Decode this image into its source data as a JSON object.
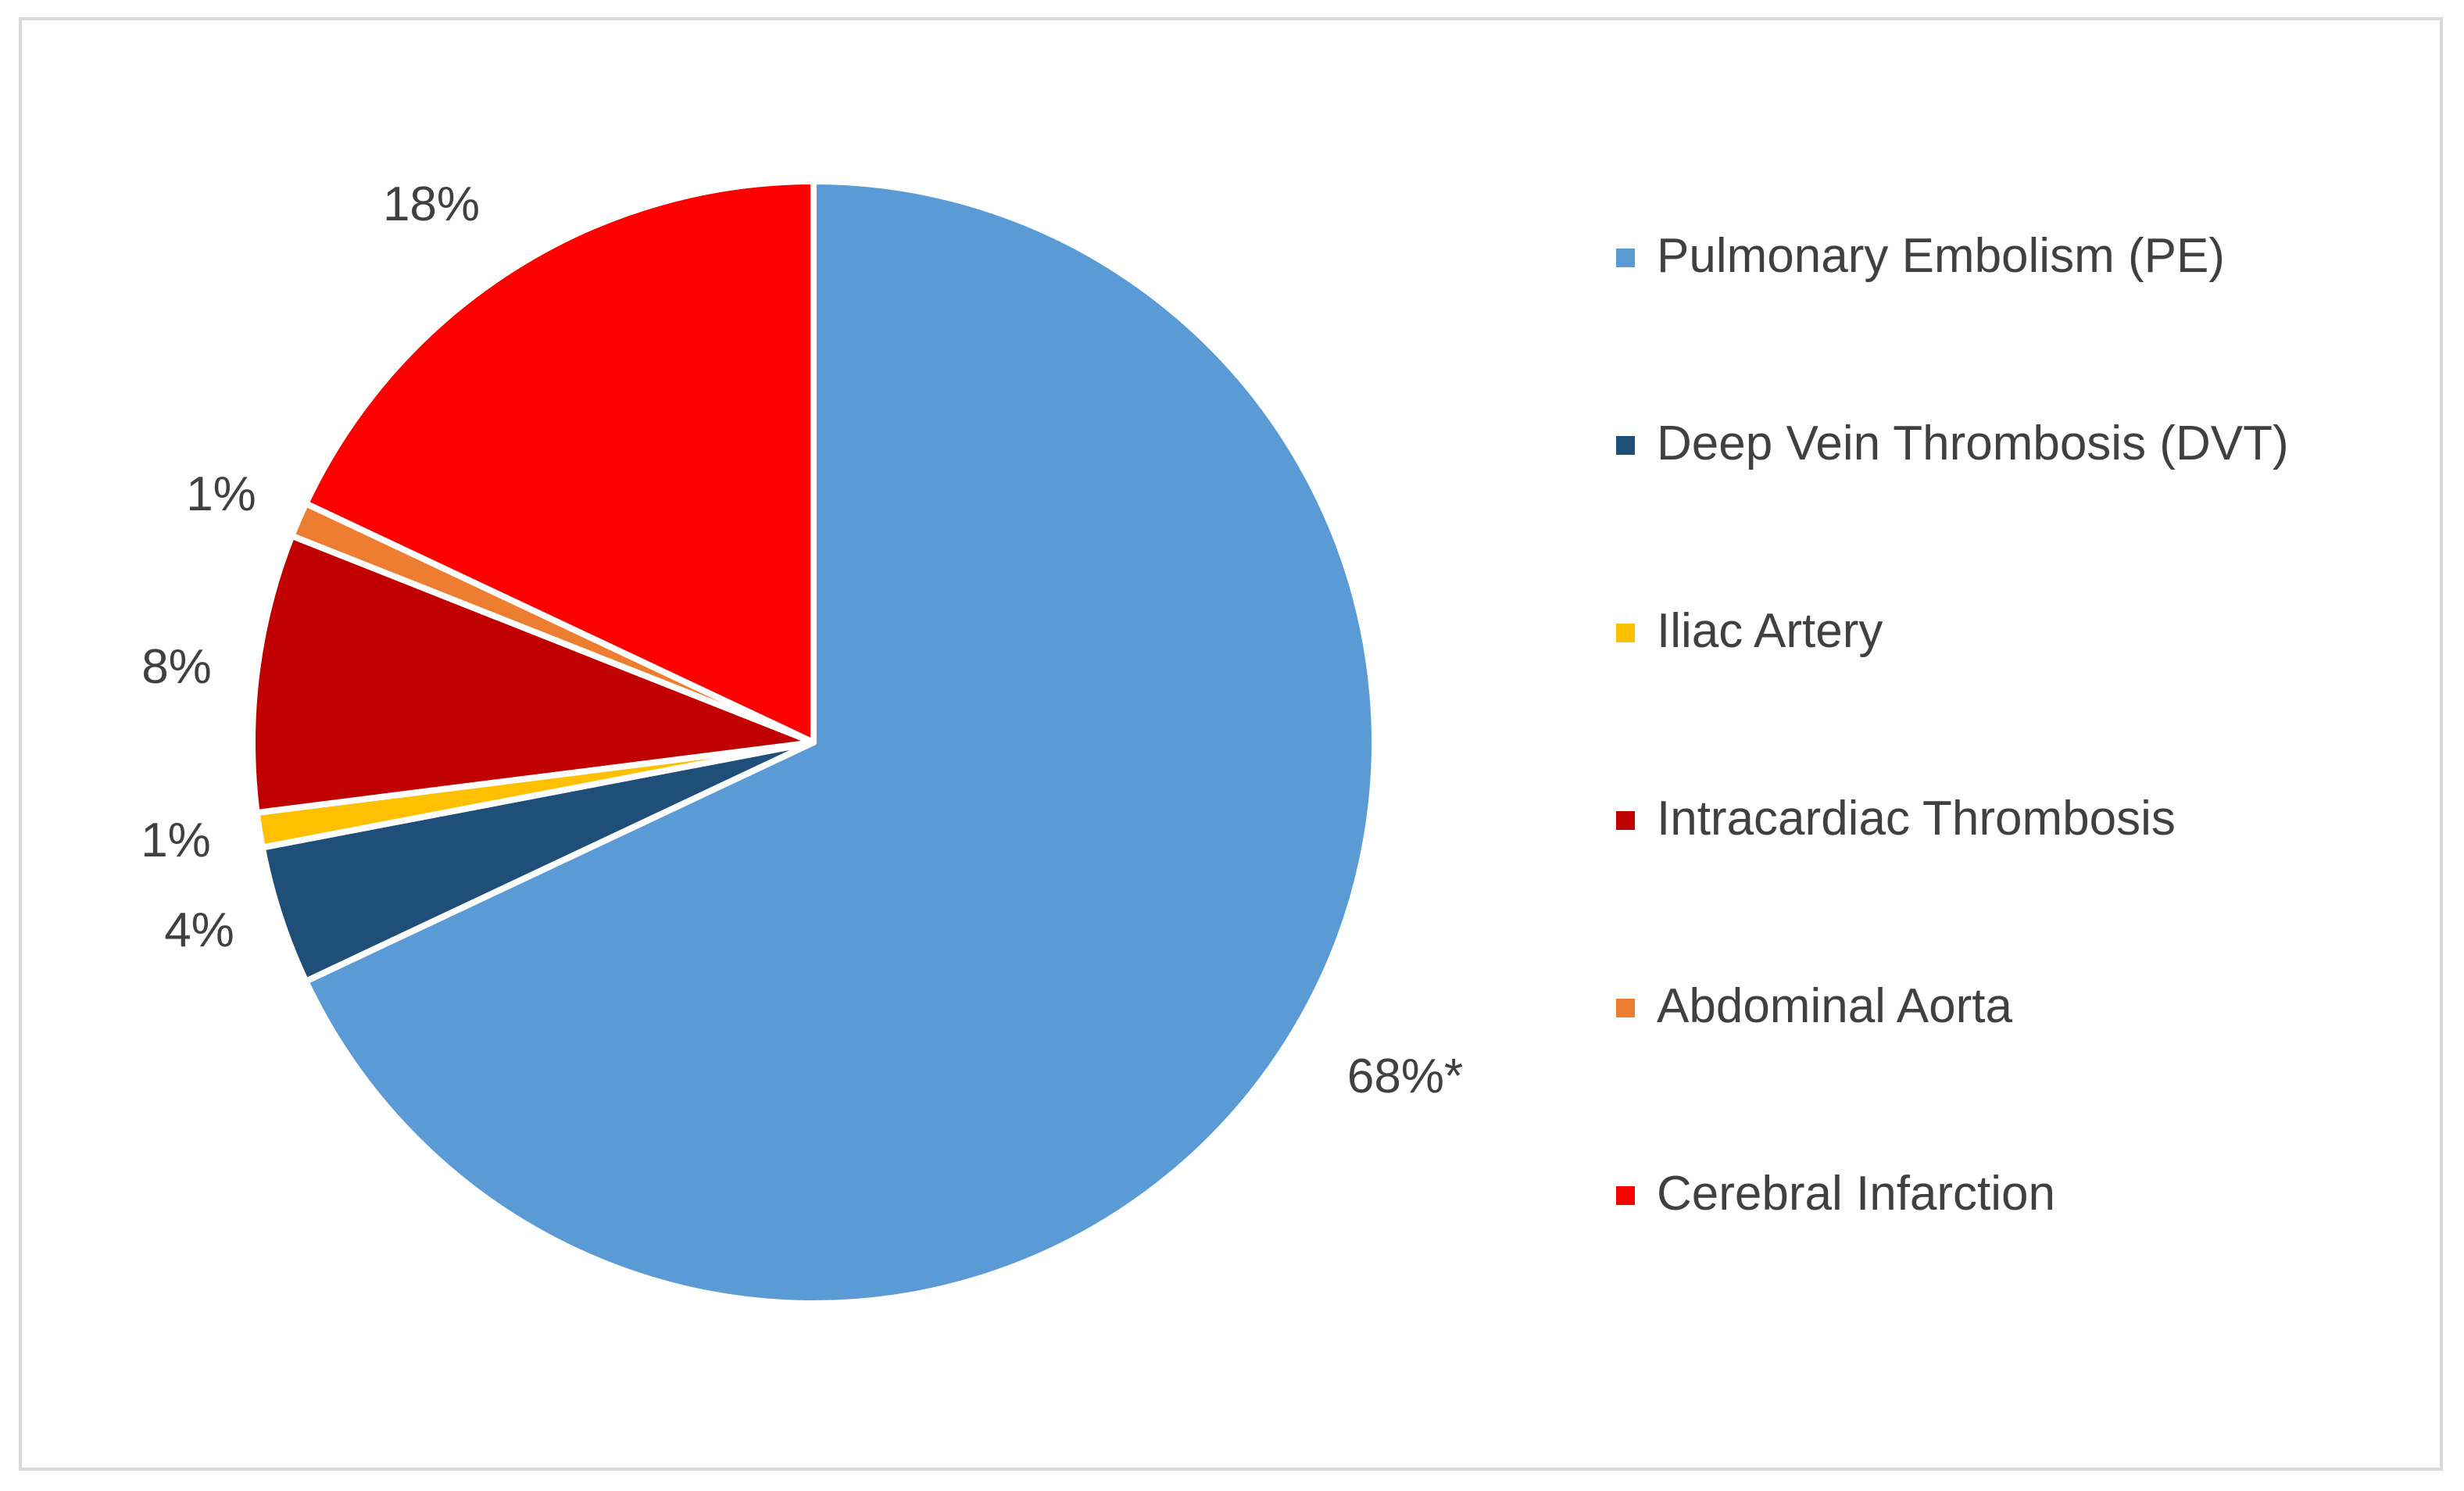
{
  "chart_data": {
    "type": "pie",
    "categories": [
      "Pulmonary Embolism (PE)",
      "Deep Vein Thrombosis (DVT)",
      "Iliac Artery",
      "Intracardiac Thrombosis",
      "Abdominal Aorta",
      "Cerebral Infarction"
    ],
    "values": [
      68,
      4,
      1,
      8,
      1,
      18
    ],
    "labels": [
      "68%*",
      "4%",
      "1%",
      "8%",
      "1%",
      "18%"
    ],
    "colors": [
      "#5b9bd5",
      "#1f4e79",
      "#ffc000",
      "#c00000",
      "#ed7d31",
      "#ff0000"
    ],
    "start_angle_deg": 0,
    "direction": "clockwise",
    "legend": "right",
    "title": ""
  }
}
